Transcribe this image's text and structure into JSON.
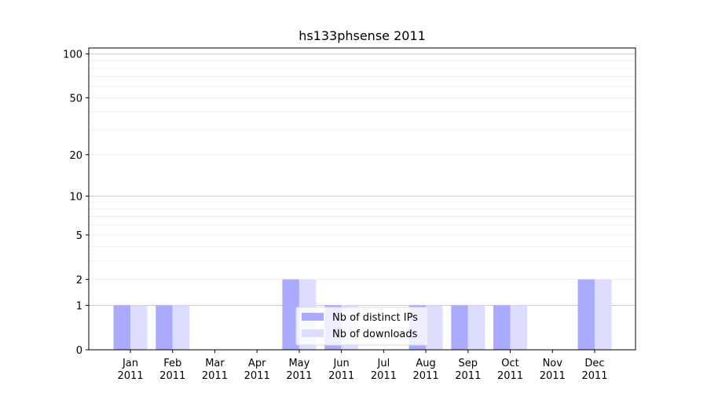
{
  "chart_data": {
    "type": "bar",
    "title": "hs133phsense 2011",
    "xlabel": "",
    "ylabel": "",
    "yscale": "log(1+y)",
    "ylim": [
      0,
      110
    ],
    "yticks": [
      0,
      1,
      2,
      5,
      10,
      20,
      50,
      100
    ],
    "grid": "horizontal, major and minor",
    "legend_position": "bottom-center",
    "categories": [
      "Jan\n2011",
      "Feb\n2011",
      "Mar\n2011",
      "Apr\n2011",
      "May\n2011",
      "Jun\n2011",
      "Jul\n2011",
      "Aug\n2011",
      "Sep\n2011",
      "Oct\n2011",
      "Nov\n2011",
      "Dec\n2011"
    ],
    "series": [
      {
        "name": "Nb of distinct IPs",
        "color": "#aaaaff",
        "values": [
          1,
          1,
          0,
          0,
          2,
          1,
          0,
          1,
          1,
          1,
          0,
          2
        ]
      },
      {
        "name": "Nb of downloads",
        "color": "#ddddff",
        "values": [
          1,
          1,
          0,
          0,
          2,
          1,
          0,
          1,
          1,
          1,
          0,
          2
        ]
      }
    ]
  }
}
